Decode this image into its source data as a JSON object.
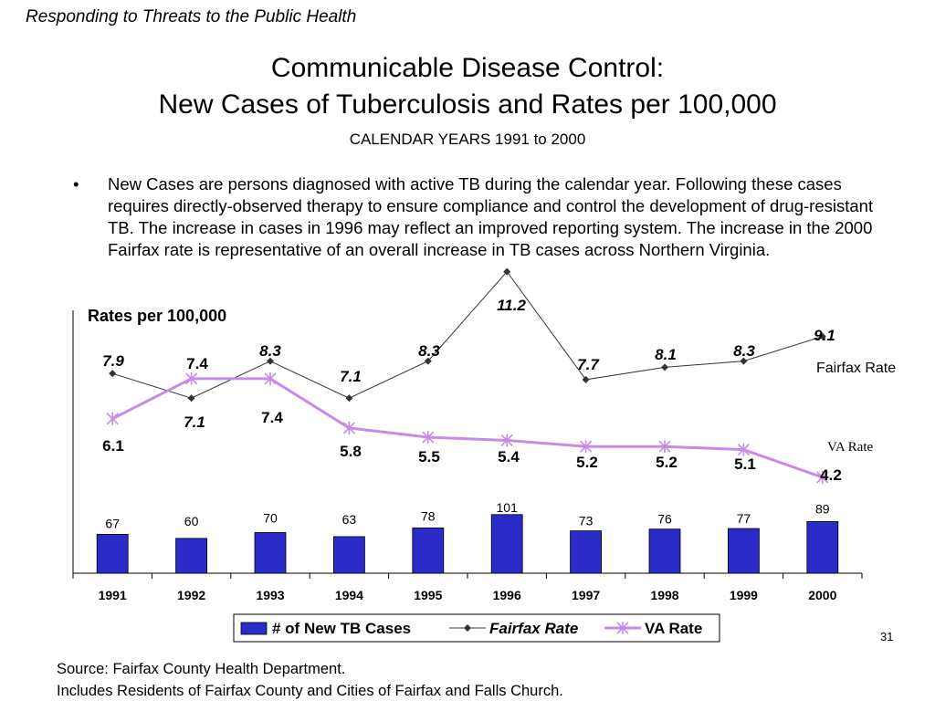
{
  "header": "Responding to Threats to the Public Health",
  "title_line1": "Communicable Disease Control:",
  "title_line2": "New Cases of Tuberculosis and Rates per 100,000",
  "subtitle": "CALENDAR YEARS 1991 to 2000",
  "bullet": {
    "symbol": "•",
    "text": "New Cases are persons diagnosed with active TB during the calendar year. Following these cases requires directly-observed therapy to ensure compliance and control the development of drug-resistant TB.  The increase in cases in 1996 may reflect an improved reporting system.  The increase in the 2000 Fairfax rate is representative of an overall increase in TB cases across Northern Virginia."
  },
  "slide_number": "31",
  "footer": {
    "line1": "Source:  Fairfax County Health Department.",
    "line2": "Includes Residents of Fairfax County and Cities of Fairfax and Falls Church."
  },
  "chart_data": {
    "type": "bar",
    "categories": [
      "1991",
      "1992",
      "1993",
      "1994",
      "1995",
      "1996",
      "1997",
      "1998",
      "1999",
      "2000"
    ],
    "rates_label": "Rates per 100,000",
    "series": [
      {
        "name": "# of New TB Cases",
        "type": "bar",
        "values": [
          67,
          60,
          70,
          63,
          78,
          101,
          73,
          76,
          77,
          89
        ],
        "color": "#2b2bc8"
      },
      {
        "name": "Fairfax Rate",
        "type": "line",
        "values": [
          7.9,
          7.1,
          8.3,
          7.1,
          8.3,
          11.2,
          7.7,
          8.1,
          8.3,
          9.1
        ],
        "color": "#333333"
      },
      {
        "name": "VA Rate",
        "type": "line",
        "values": [
          6.1,
          7.4,
          7.4,
          5.8,
          5.5,
          5.4,
          5.2,
          5.2,
          5.1,
          4.2
        ],
        "color": "#c58be6"
      }
    ],
    "inline_labels": {
      "fairfax": "Fairfax Rate",
      "va": "VA Rate"
    },
    "legend": {
      "position": "bottom"
    }
  }
}
